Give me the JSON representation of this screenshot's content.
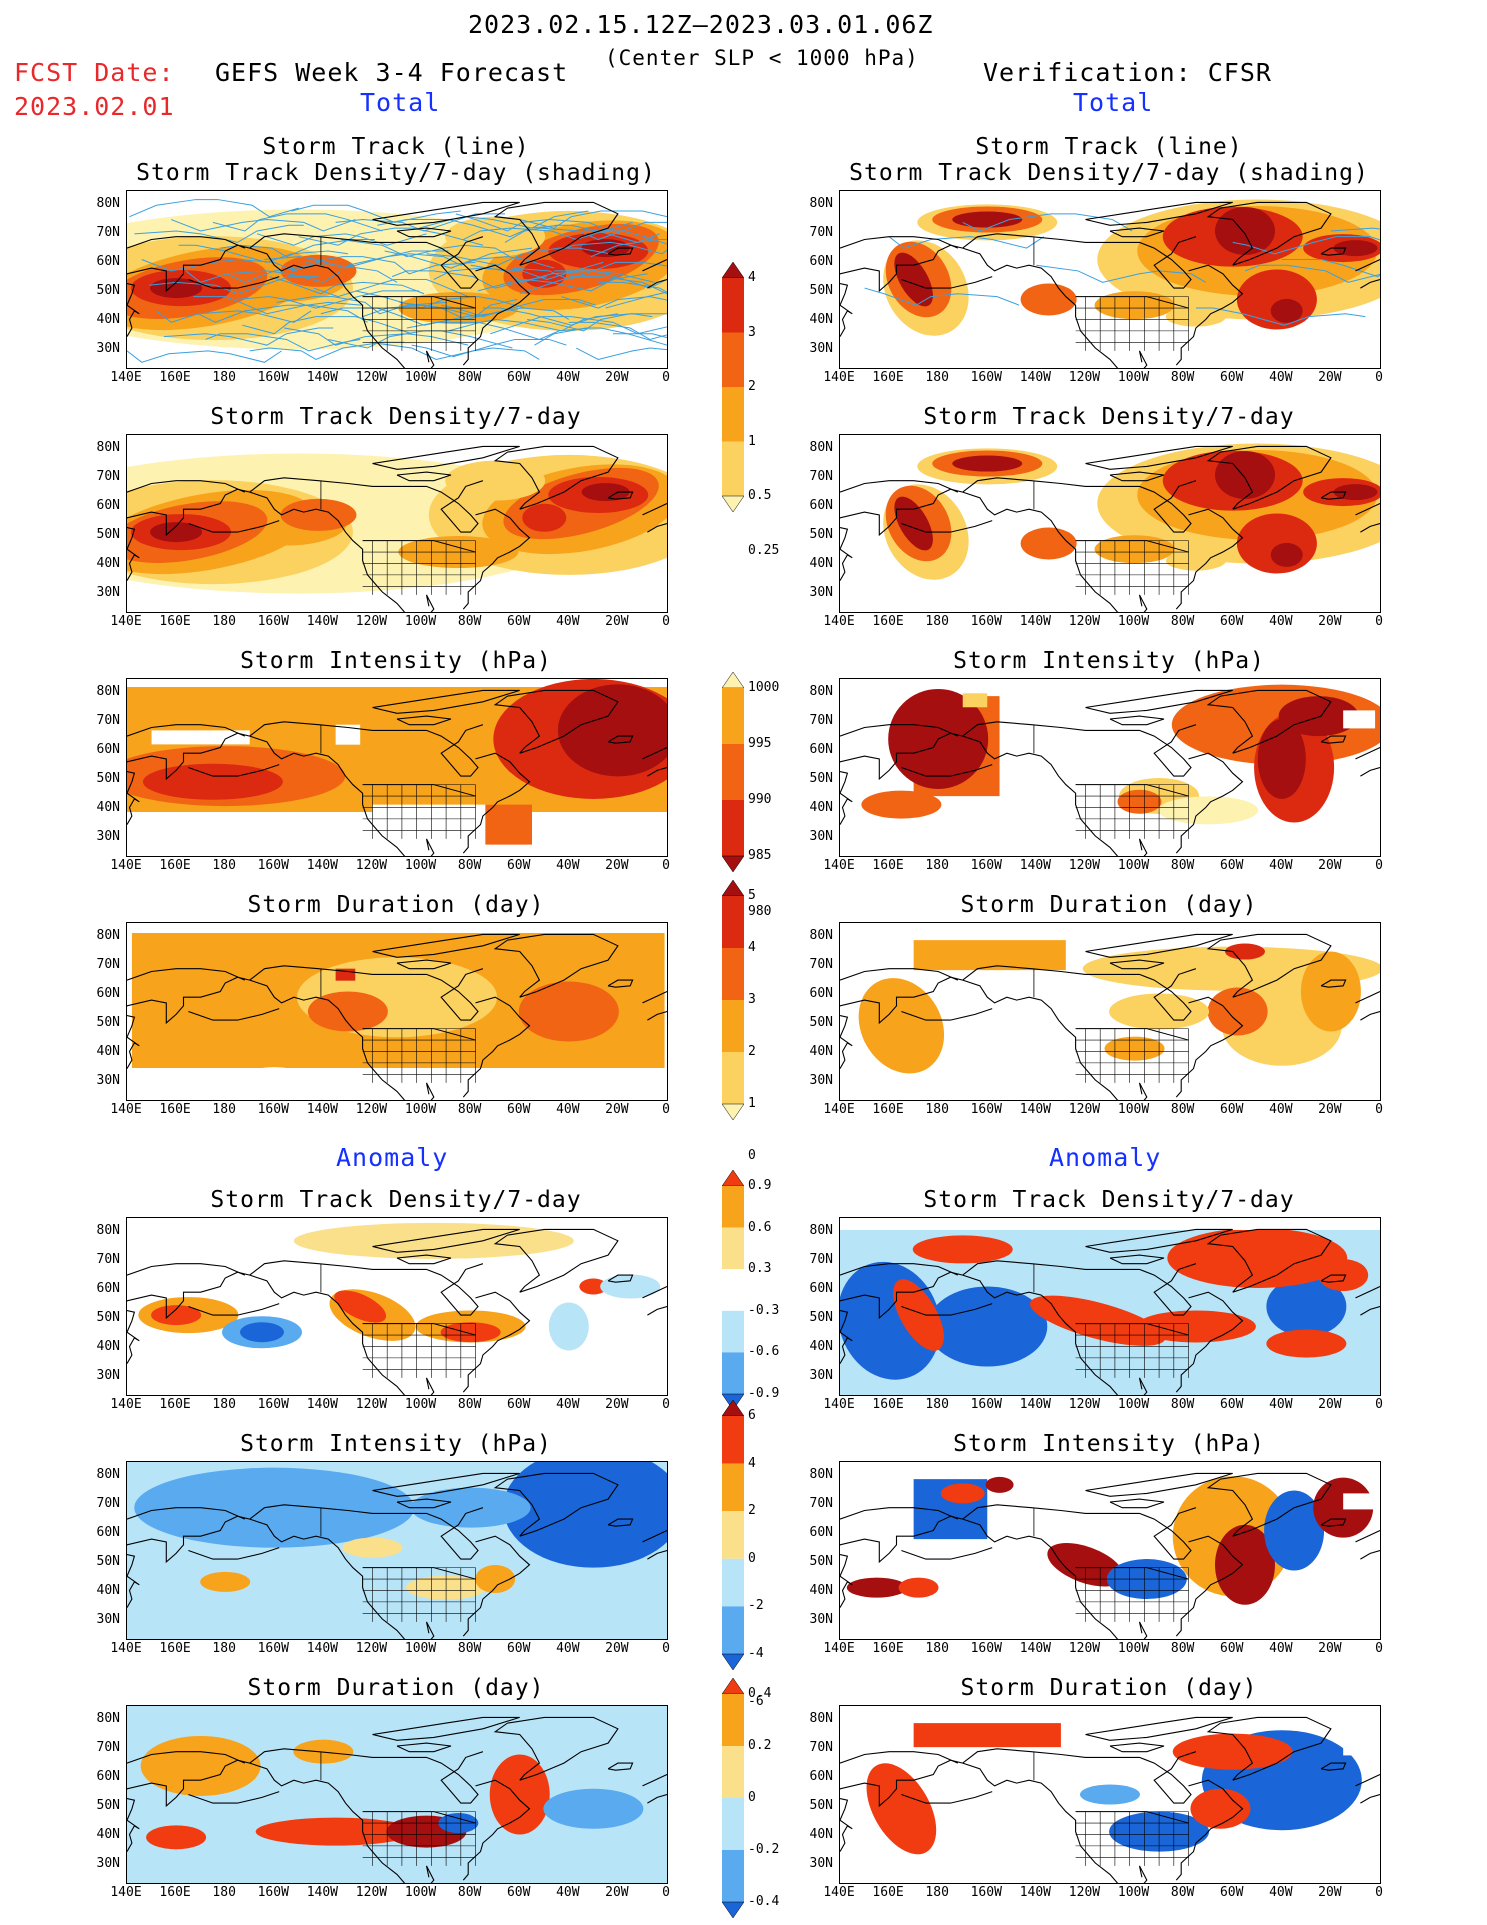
{
  "header": {
    "date_range": "2023.02.15.12Z–2023.03.01.06Z",
    "subtitle": "(Center SLP < 1000 hPa)",
    "fcst_label": "FCST Date:",
    "fcst_date": "2023.02.01",
    "forecast_label": "GEFS Week 3-4 Forecast",
    "verification_label": "Verification: CFSR",
    "left_total": "Total",
    "right_total": "Total",
    "left_anomaly": "Anomaly",
    "right_anomaly": "Anomaly"
  },
  "panel_titles": {
    "track_line": "Storm Track (line)",
    "track_shading": "Storm Track Density/7-day (shading)",
    "density": "Storm Track Density/7-day",
    "intensity": "Storm Intensity (hPa)",
    "duration": "Storm Duration (day)"
  },
  "axes": {
    "lat_labels": [
      "80N",
      "70N",
      "60N",
      "50N",
      "40N",
      "30N"
    ],
    "lon_labels": [
      "140E",
      "160E",
      "180",
      "160W",
      "140W",
      "120W",
      "100W",
      "80W",
      "60W",
      "40W",
      "20W",
      "0"
    ]
  },
  "colorbars": {
    "density": {
      "labels": [
        "4",
        "3",
        "2",
        "1",
        "0.5",
        "0.25"
      ],
      "colors": [
        "#a50f0f",
        "#dc2a10",
        "#f06414",
        "#f7a31c",
        "#fbd160",
        "#fdf2b0"
      ]
    },
    "intensity": {
      "labels": [
        "1000",
        "995",
        "990",
        "985",
        "980"
      ],
      "colors": [
        "#fdf2b0",
        "#f7a31c",
        "#f06414",
        "#dc2a10",
        "#a50f0f"
      ]
    },
    "duration": {
      "labels": [
        "5",
        "4",
        "3",
        "2",
        "1",
        "0"
      ],
      "colors": [
        "#a50f0f",
        "#dc2a10",
        "#f06414",
        "#f7a31c",
        "#fbd160",
        "#fdf2b0"
      ]
    },
    "anom_density": {
      "labels": [
        "0.9",
        "0.6",
        "0.3",
        "-0.3",
        "-0.6",
        "-0.9"
      ],
      "colors": [
        "#f03c10",
        "#f7a31c",
        "#fbe08c",
        "#ffffff",
        "#b8e4f8",
        "#5aaaf0",
        "#1a66d8"
      ]
    },
    "anom_intensity": {
      "labels": [
        "6",
        "4",
        "2",
        "0",
        "-2",
        "-4",
        "-6"
      ],
      "colors": [
        "#a50f0f",
        "#f03c10",
        "#f7a31c",
        "#fbe08c",
        "#b8e4f8",
        "#5aaaf0",
        "#1a66d8"
      ]
    },
    "anom_duration": {
      "labels": [
        "0.4",
        "0.2",
        "0",
        "-0.2",
        "-0.4"
      ],
      "colors": [
        "#f03c10",
        "#f7a31c",
        "#fbe08c",
        "#b8e4f8",
        "#5aaaf0",
        "#1a66d8"
      ]
    }
  }
}
